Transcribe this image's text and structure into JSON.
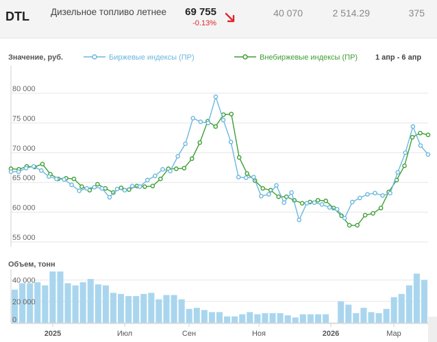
{
  "ticker": {
    "code": "DTL",
    "name": "Дизельное топливо летнее",
    "price": "69 755",
    "change": "-0.13%",
    "volume": "40 070",
    "value": "2 514.29",
    "count": "375",
    "arrow_icon": "arrow-down-right-icon",
    "change_color": "#e0262c"
  },
  "chart_data": [
    {
      "type": "line",
      "title": "Значение, руб.",
      "period": "1 апр - 6 апр",
      "ylim": [
        55000,
        82000
      ],
      "yticks": [
        "80 000",
        "75 000",
        "70 000",
        "65 000",
        "60 000",
        "55 000"
      ],
      "grid": true,
      "legend_position": "top",
      "series": [
        {
          "name": "Биржевые индексы (ПР)",
          "color": "#6ab7dd",
          "values": [
            66800,
            66800,
            67400,
            67700,
            67000,
            66000,
            65600,
            65500,
            64600,
            63600,
            64000,
            64200,
            64000,
            62500,
            63900,
            63700,
            64400,
            64300,
            65400,
            66100,
            67200,
            66900,
            69400,
            71500,
            75800,
            75200,
            75000,
            79400,
            75500,
            71800,
            65900,
            65800,
            65900,
            62700,
            63000,
            64500,
            61600,
            63300,
            58700,
            61500,
            61600,
            61300,
            60800,
            60500,
            59000,
            61700,
            62400,
            63000,
            63200,
            62800,
            63200,
            66700,
            70000,
            74400,
            71200,
            69700
          ]
        },
        {
          "name": "Внебиржевые индексы (ПР)",
          "color": "#3c9e33",
          "values": [
            67300,
            67200,
            67700,
            67600,
            68100,
            66400,
            65600,
            65700,
            65600,
            64300,
            63700,
            64700,
            64000,
            63300,
            64100,
            63800,
            64400,
            64300,
            64400,
            65600,
            67300,
            67300,
            67400,
            69000,
            71700,
            75300,
            74400,
            76400,
            76500,
            69200,
            66500,
            65300,
            64000,
            63700,
            62600,
            62600,
            62000,
            61500,
            61700,
            62000,
            61900,
            60700,
            59400,
            57800,
            57800,
            59500,
            59800,
            60700,
            63400,
            65400,
            67800,
            72600,
            73300,
            73000
          ]
        }
      ]
    },
    {
      "type": "bar",
      "title": "Объем, тонн",
      "ylim": [
        0,
        50000
      ],
      "yticks": [
        "40 000",
        "20 000",
        "0"
      ],
      "x_labels": [
        "2025",
        "Июл",
        "Сен",
        "Ноя",
        "2026",
        "Мар"
      ],
      "color": "#a9d6ee",
      "values": [
        31000,
        37000,
        37000,
        38000,
        35000,
        48000,
        48000,
        37000,
        35000,
        38000,
        41000,
        36000,
        35000,
        28000,
        27000,
        25000,
        25000,
        27000,
        28000,
        22000,
        26000,
        26000,
        22000,
        13000,
        14000,
        12000,
        10000,
        10000,
        6000,
        6000,
        8000,
        10000,
        8000,
        9000,
        9000,
        9000,
        7000,
        5000,
        8000,
        8000,
        8000,
        8000,
        0,
        20000,
        17000,
        9000,
        14000,
        10000,
        9000,
        13000,
        24000,
        27000,
        35000,
        46000,
        40000
      ]
    }
  ]
}
